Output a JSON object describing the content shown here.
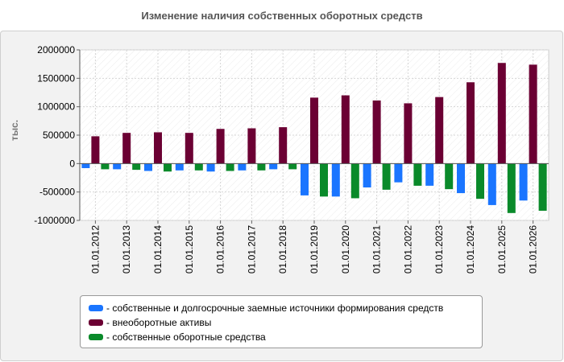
{
  "chart_data": {
    "type": "bar",
    "title": "Изменение наличия собственных оборотных средств",
    "ylabel": "тыс.",
    "xlabel": "",
    "ylim": [
      -1000000,
      2000000
    ],
    "yticks": [
      -1000000,
      -500000,
      0,
      500000,
      1000000,
      1500000,
      2000000
    ],
    "ytick_labels": [
      "-1000000",
      "-500000",
      "0",
      "500000",
      "1000000",
      "1500000",
      "2000000"
    ],
    "grid": true,
    "legend_position": "bottom",
    "categories": [
      "01.01.2012",
      "01.01.2013",
      "01.01.2014",
      "01.01.2015",
      "01.01.2016",
      "01.01.2017",
      "01.01.2018",
      "01.01.2019",
      "01.01.2020",
      "01.01.2021",
      "01.01.2022",
      "01.01.2023",
      "01.01.2024",
      "01.01.2025",
      "01.01.2026"
    ],
    "series": [
      {
        "name": "- собственные и долгосрочные заемные источники формирования средств",
        "color": "#1a75ff",
        "values": [
          -80000,
          -100000,
          -130000,
          -120000,
          -140000,
          -120000,
          -100000,
          -560000,
          -580000,
          -420000,
          -330000,
          -390000,
          -520000,
          -730000,
          -650000
        ]
      },
      {
        "name": "- внеоборотные активы",
        "color": "#6b0033",
        "values": [
          480000,
          540000,
          550000,
          540000,
          610000,
          620000,
          640000,
          1160000,
          1200000,
          1110000,
          1060000,
          1170000,
          1430000,
          1770000,
          1740000
        ]
      },
      {
        "name": "- собственные оборотные средства",
        "color": "#0a8a2a",
        "values": [
          -100000,
          -110000,
          -140000,
          -120000,
          -130000,
          -120000,
          -100000,
          -580000,
          -610000,
          -460000,
          -390000,
          -450000,
          -620000,
          -870000,
          -830000
        ]
      }
    ]
  }
}
